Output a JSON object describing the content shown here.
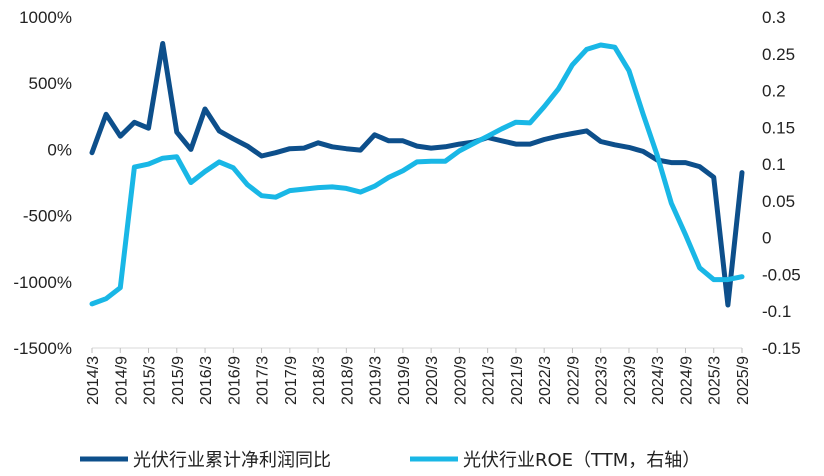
{
  "chart_data": {
    "type": "line",
    "title": "",
    "categories": [
      "2014/3",
      "2014/6",
      "2014/9",
      "2014/12",
      "2015/3",
      "2015/6",
      "2015/9",
      "2015/12",
      "2016/3",
      "2016/6",
      "2016/9",
      "2016/12",
      "2017/3",
      "2017/6",
      "2017/9",
      "2017/12",
      "2018/3",
      "2018/6",
      "2018/9",
      "2018/12",
      "2019/3",
      "2019/6",
      "2019/9",
      "2019/12",
      "2020/3",
      "2020/6",
      "2020/9",
      "2020/12",
      "2021/3",
      "2021/6",
      "2021/9",
      "2021/12",
      "2022/3",
      "2022/6",
      "2022/9",
      "2022/12",
      "2023/3",
      "2023/6",
      "2023/9",
      "2023/12",
      "2024/3",
      "2024/6",
      "2024/9",
      "2024/12",
      "2025/3",
      "2025/6",
      "2025/9"
    ],
    "x_tick_labels": [
      "2014/3",
      "2014/9",
      "2015/3",
      "2015/9",
      "2016/3",
      "2016/9",
      "2017/3",
      "2017/9",
      "2018/3",
      "2018/9",
      "2019/3",
      "2019/9",
      "2020/3",
      "2020/9",
      "2021/3",
      "2021/9",
      "2022/3",
      "2022/9",
      "2023/3",
      "2023/9",
      "2024/3",
      "2024/9",
      "2025/3",
      "2025/9"
    ],
    "left_axis": {
      "ylim": [
        -1500,
        1000
      ],
      "ticks": [
        1000,
        500,
        0,
        -500,
        -1000,
        -1500
      ],
      "tick_labels": [
        "1000%",
        "500%",
        "0%",
        "-500%",
        "-1000%",
        "-1500%"
      ]
    },
    "right_axis": {
      "ylim": [
        -0.15,
        0.3
      ],
      "ticks": [
        0.3,
        0.25,
        0.2,
        0.15,
        0.1,
        0.05,
        0,
        -0.05,
        -0.1,
        -0.15
      ],
      "tick_labels": [
        "0.3",
        "0.25",
        "0.2",
        "0.15",
        "0.1",
        "0.05",
        "0",
        "-0.05",
        "-0.1",
        "-0.15"
      ]
    },
    "series": [
      {
        "name": "光伏行业累计净利润同比",
        "axis": "left",
        "color": "#0d4f8b",
        "unit": "%",
        "values": [
          -25,
          265,
          100,
          205,
          160,
          800,
          130,
          0,
          305,
          140,
          80,
          25,
          -50,
          -25,
          5,
          10,
          50,
          20,
          5,
          -5,
          110,
          65,
          65,
          25,
          10,
          20,
          40,
          55,
          90,
          65,
          40,
          40,
          75,
          100,
          120,
          140,
          60,
          35,
          15,
          -15,
          -80,
          -100,
          -100,
          -130,
          -210,
          -1175,
          -175
        ]
      },
      {
        "name": "光伏行业ROE（TTM，右轴）",
        "axis": "right",
        "color": "#19b7e6",
        "values": [
          -0.09,
          -0.083,
          -0.068,
          0.096,
          0.1,
          0.108,
          0.11,
          0.075,
          0.09,
          0.103,
          0.095,
          0.072,
          0.057,
          0.055,
          0.064,
          0.066,
          0.068,
          0.069,
          0.067,
          0.062,
          0.07,
          0.082,
          0.091,
          0.103,
          0.104,
          0.104,
          0.118,
          0.128,
          0.138,
          0.148,
          0.157,
          0.156,
          0.178,
          0.202,
          0.235,
          0.256,
          0.262,
          0.259,
          0.227,
          0.168,
          0.112,
          0.047,
          0.004,
          -0.041,
          -0.057,
          -0.057,
          -0.053
        ]
      }
    ],
    "legend_position": "bottom",
    "grid": false
  }
}
